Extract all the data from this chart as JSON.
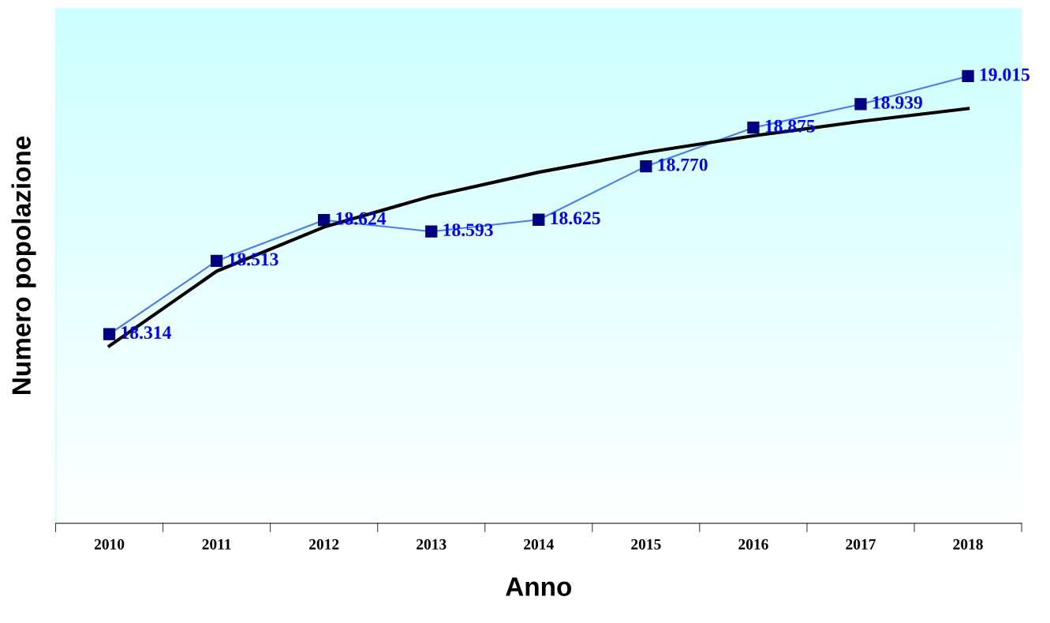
{
  "chart_data": {
    "type": "line",
    "xlabel": "Anno",
    "ylabel": "Numero popolazione",
    "categories": [
      "2010",
      "2011",
      "2012",
      "2013",
      "2014",
      "2015",
      "2016",
      "2017",
      "2018"
    ],
    "ylim": [
      17800,
      19200
    ],
    "tick_labels": "x",
    "grid": false,
    "legend": false,
    "series": [
      {
        "color": "#4a7cf0",
        "marker": "square",
        "values": [
          18314,
          18513,
          18624,
          18593,
          18625,
          18770,
          18875,
          18939,
          19015
        ],
        "value_labels": [
          "18.314",
          "18.513",
          "18.624",
          "18.593",
          "18.625",
          "18.770",
          "18.875",
          "18.939",
          "19.015"
        ]
      },
      {
        "color": "#000000",
        "marker": "none",
        "values": [
          18282,
          18485,
          18605,
          18689,
          18754,
          18808,
          18853,
          18892,
          18927
        ]
      }
    ]
  }
}
